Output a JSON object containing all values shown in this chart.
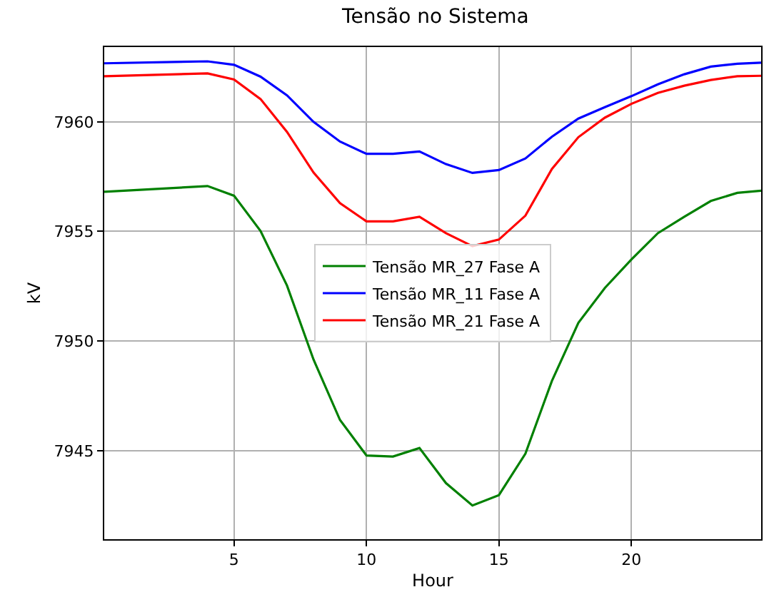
{
  "chart_data": {
    "type": "line",
    "title": "Tensão no Sistema",
    "xlabel": "Hour",
    "ylabel": "kV",
    "x": [
      0.1,
      4,
      5,
      6,
      7,
      8,
      9,
      10,
      11,
      12,
      13,
      14,
      15,
      16,
      17,
      18,
      19,
      20,
      21,
      22,
      23,
      24,
      24.9
    ],
    "series": [
      {
        "name": "Tensão MR_27 Fase A",
        "color": "#008000",
        "values": [
          7956.81,
          7957.07,
          7956.63,
          7955.02,
          7952.53,
          7949.16,
          7946.4,
          7944.78,
          7944.73,
          7945.12,
          7943.52,
          7942.5,
          7942.97,
          7944.86,
          7948.18,
          7950.83,
          7952.42,
          7953.72,
          7954.92,
          7955.67,
          7956.39,
          7956.76,
          7956.86
        ]
      },
      {
        "name": "Tensão MR_11 Fase A",
        "color": "#0000ff",
        "values": [
          7962.67,
          7962.76,
          7962.6,
          7962.06,
          7961.21,
          7960.0,
          7959.1,
          7958.54,
          7958.54,
          7958.65,
          7958.07,
          7957.67,
          7957.8,
          7958.33,
          7959.32,
          7960.15,
          7960.67,
          7961.17,
          7961.71,
          7962.17,
          7962.52,
          7962.65,
          7962.7
        ]
      },
      {
        "name": "Tensão MR_21 Fase A",
        "color": "#ff0000",
        "values": [
          7962.08,
          7962.21,
          7961.93,
          7961.04,
          7959.54,
          7957.69,
          7956.29,
          7955.46,
          7955.46,
          7955.67,
          7954.92,
          7954.33,
          7954.63,
          7955.72,
          7957.85,
          7959.3,
          7960.19,
          7960.82,
          7961.32,
          7961.65,
          7961.91,
          7962.08,
          7962.1
        ]
      }
    ],
    "xlim": [
      0.1,
      24.9
    ],
    "xticks": [
      5,
      10,
      15,
      20
    ],
    "ylim": [
      7940.96,
      7963.41
    ],
    "yticks": [
      7945,
      7950,
      7955,
      7960
    ],
    "grid": true,
    "legend": "center",
    "marker": "none",
    "line_style": "solid"
  }
}
